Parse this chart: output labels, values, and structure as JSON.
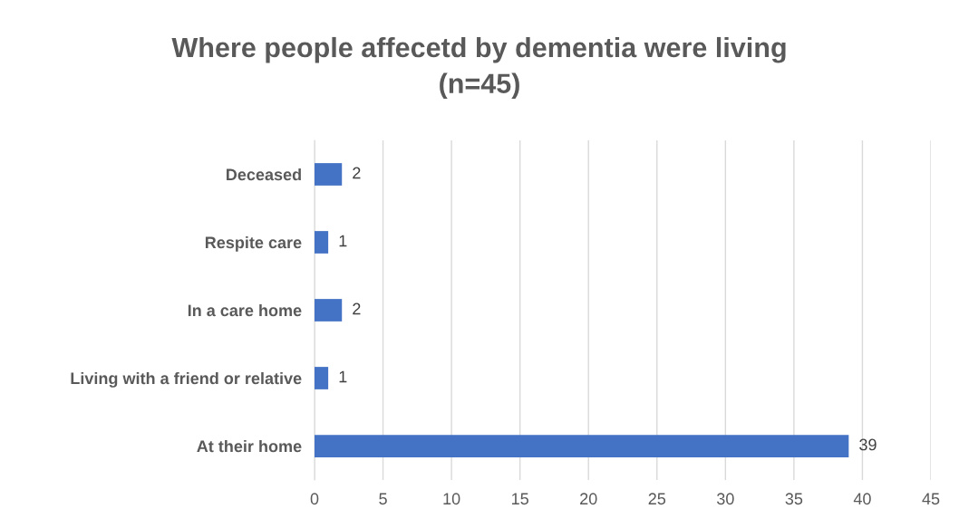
{
  "chart_data": {
    "type": "bar",
    "orientation": "horizontal",
    "title": "Where people affecetd by dementia were living\n(n=45)",
    "categories": [
      "Deceased",
      "Respite care",
      "In a care home",
      "Living with a friend or relative",
      "At their home"
    ],
    "values": [
      2,
      1,
      2,
      1,
      39
    ],
    "color": "#4472c4",
    "xlim": [
      0,
      45
    ],
    "xticks": [
      0,
      5,
      10,
      15,
      20,
      25,
      30,
      35,
      40,
      45
    ],
    "grid": "x",
    "data_labels": true
  }
}
